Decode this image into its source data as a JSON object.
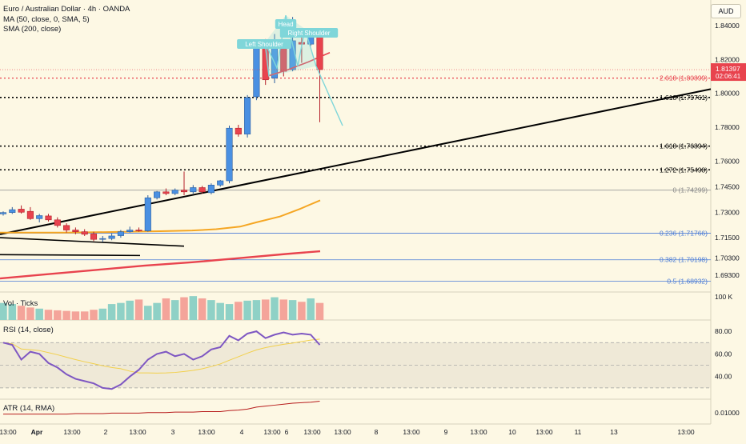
{
  "header": {
    "title": "Euro / Australian Dollar · 4h · OANDA",
    "indicator_ma": "MA (50, close, 0, SMA, 5)",
    "indicator_sma": "SMA (200, close)",
    "currency": "AUD"
  },
  "colors": {
    "background": "#fdf8e4",
    "up": "#4a90e2",
    "down": "#e8434e",
    "ma50": "#f5a623",
    "sma200": "#e8434e",
    "trendline": "#000000",
    "fib": "#4a7bd6",
    "rsi": "#7e57c2",
    "atr": "#b71c1c",
    "pattern": "#7fd6d9"
  },
  "chart_data": [
    {
      "type": "candlestick",
      "title": "Euro / Australian Dollar · 4h · OANDA",
      "x_tick_labels": [
        "13:00",
        "Apr",
        "13:00",
        "2",
        "13:00",
        "3",
        "13:00",
        "4",
        "13:00",
        "6",
        "13:00",
        "13:00",
        "8",
        "13:00",
        "9",
        "13:00",
        "10",
        "13:00",
        "11",
        "13",
        "13:00"
      ],
      "y_tick_labels": [
        "1.84000",
        "1.82000",
        "1.80000",
        "1.78000",
        "1.76000",
        "1.74500",
        "1.73000",
        "1.71500",
        "1.70300",
        "1.69300"
      ],
      "ylim": [
        1.683,
        1.855
      ],
      "candles": [
        {
          "o": 1.729,
          "h": 1.7305,
          "l": 1.728,
          "c": 1.7298
        },
        {
          "o": 1.7298,
          "h": 1.733,
          "l": 1.729,
          "c": 1.7315
        },
        {
          "o": 1.7318,
          "h": 1.734,
          "l": 1.7292,
          "c": 1.73
        },
        {
          "o": 1.7305,
          "h": 1.733,
          "l": 1.7255,
          "c": 1.7262
        },
        {
          "o": 1.7262,
          "h": 1.729,
          "l": 1.724,
          "c": 1.728
        },
        {
          "o": 1.7278,
          "h": 1.729,
          "l": 1.7245,
          "c": 1.7255
        },
        {
          "o": 1.7255,
          "h": 1.727,
          "l": 1.721,
          "c": 1.7222
        },
        {
          "o": 1.7222,
          "h": 1.7235,
          "l": 1.718,
          "c": 1.7195
        },
        {
          "o": 1.7195,
          "h": 1.721,
          "l": 1.717,
          "c": 1.7185
        },
        {
          "o": 1.7185,
          "h": 1.72,
          "l": 1.716,
          "c": 1.717
        },
        {
          "o": 1.7172,
          "h": 1.7185,
          "l": 1.713,
          "c": 1.714
        },
        {
          "o": 1.714,
          "h": 1.716,
          "l": 1.7125,
          "c": 1.7145
        },
        {
          "o": 1.7145,
          "h": 1.7175,
          "l": 1.7135,
          "c": 1.716
        },
        {
          "o": 1.7162,
          "h": 1.7195,
          "l": 1.715,
          "c": 1.7185
        },
        {
          "o": 1.7185,
          "h": 1.7215,
          "l": 1.718,
          "c": 1.7195
        },
        {
          "o": 1.7195,
          "h": 1.721,
          "l": 1.7185,
          "c": 1.719
        },
        {
          "o": 1.719,
          "h": 1.74,
          "l": 1.7185,
          "c": 1.7385
        },
        {
          "o": 1.7385,
          "h": 1.7425,
          "l": 1.7375,
          "c": 1.742
        },
        {
          "o": 1.742,
          "h": 1.744,
          "l": 1.74,
          "c": 1.741
        },
        {
          "o": 1.741,
          "h": 1.744,
          "l": 1.74,
          "c": 1.743
        },
        {
          "o": 1.743,
          "h": 1.754,
          "l": 1.74,
          "c": 1.742
        },
        {
          "o": 1.742,
          "h": 1.746,
          "l": 1.741,
          "c": 1.7445
        },
        {
          "o": 1.7445,
          "h": 1.7455,
          "l": 1.741,
          "c": 1.742
        },
        {
          "o": 1.7415,
          "h": 1.747,
          "l": 1.7405,
          "c": 1.746
        },
        {
          "o": 1.746,
          "h": 1.749,
          "l": 1.745,
          "c": 1.7485
        },
        {
          "o": 1.7485,
          "h": 1.781,
          "l": 1.747,
          "c": 1.7795
        },
        {
          "o": 1.7795,
          "h": 1.7815,
          "l": 1.7745,
          "c": 1.776
        },
        {
          "o": 1.776,
          "h": 1.799,
          "l": 1.774,
          "c": 1.7975
        },
        {
          "o": 1.798,
          "h": 1.83,
          "l": 1.796,
          "c": 1.828
        },
        {
          "o": 1.8285,
          "h": 1.832,
          "l": 1.805,
          "c": 1.808
        },
        {
          "o": 1.809,
          "h": 1.835,
          "l": 1.806,
          "c": 1.827
        },
        {
          "o": 1.827,
          "h": 1.83,
          "l": 1.81,
          "c": 1.813
        },
        {
          "o": 1.814,
          "h": 1.845,
          "l": 1.813,
          "c": 1.831
        },
        {
          "o": 1.83,
          "h": 1.834,
          "l": 1.818,
          "c": 1.829
        },
        {
          "o": 1.829,
          "h": 1.838,
          "l": 1.828,
          "c": 1.834
        },
        {
          "o": 1.833,
          "h": 1.834,
          "l": 1.783,
          "c": 1.814
        }
      ],
      "last_price": "1.81397",
      "countdown": "02:06:41",
      "levels": [
        {
          "label": "2.618 (1.80899)",
          "value": 1.80899,
          "style": "red-dotted"
        },
        {
          "label": "1.618 (1.79761)",
          "value": 1.79761,
          "style": "black-dotted"
        },
        {
          "label": "1.618 (1.76894)",
          "value": 1.76894,
          "style": "black-dotted"
        },
        {
          "label": "1.272 (1.75498)",
          "value": 1.75498,
          "style": "black-dotted"
        },
        {
          "label": "0 (1.74299)",
          "value": 1.74299,
          "style": "gray"
        },
        {
          "label": "0.236 (1.71766)",
          "value": 1.71766,
          "style": "blue"
        },
        {
          "label": "0.382 (1.70198)",
          "value": 1.70198,
          "style": "blue"
        },
        {
          "label": "0.5 (1.68932)",
          "value": 1.68932,
          "style": "blue"
        }
      ],
      "annotations": [
        "Left Shoulder",
        "Head",
        "Right Shoulder"
      ]
    },
    {
      "type": "bar",
      "title": "Vol · Ticks",
      "y_tick_labels": [
        "100 K"
      ],
      "values": [
        30,
        28,
        25,
        22,
        20,
        18,
        17,
        16,
        15,
        15,
        18,
        20,
        28,
        30,
        34,
        36,
        25,
        30,
        38,
        35,
        40,
        42,
        38,
        35,
        30,
        28,
        32,
        34,
        35,
        36,
        40,
        36,
        35,
        32,
        38,
        30
      ]
    },
    {
      "type": "line",
      "title": "RSI (14, close)",
      "y_tick_labels": [
        "80.00",
        "60.00",
        "40.00"
      ],
      "ylim": [
        20,
        90
      ],
      "values": [
        70,
        68,
        55,
        62,
        60,
        52,
        48,
        42,
        38,
        36,
        34,
        30,
        29,
        33,
        40,
        46,
        55,
        60,
        62,
        58,
        60,
        55,
        58,
        64,
        66,
        76,
        72,
        78,
        80,
        74,
        77,
        79,
        77,
        78,
        77,
        68
      ]
    },
    {
      "type": "line",
      "title": "ATR (14, RMA)",
      "y_tick_labels": [
        "0.01000"
      ],
      "values": [
        20,
        20,
        20,
        20,
        20,
        20,
        20,
        20,
        21,
        21,
        21,
        21,
        22,
        22,
        22,
        22,
        23,
        23,
        23,
        24,
        24,
        24,
        25,
        25,
        25,
        27,
        28,
        30,
        34,
        36,
        38,
        40,
        42,
        43,
        44,
        46
      ]
    }
  ]
}
